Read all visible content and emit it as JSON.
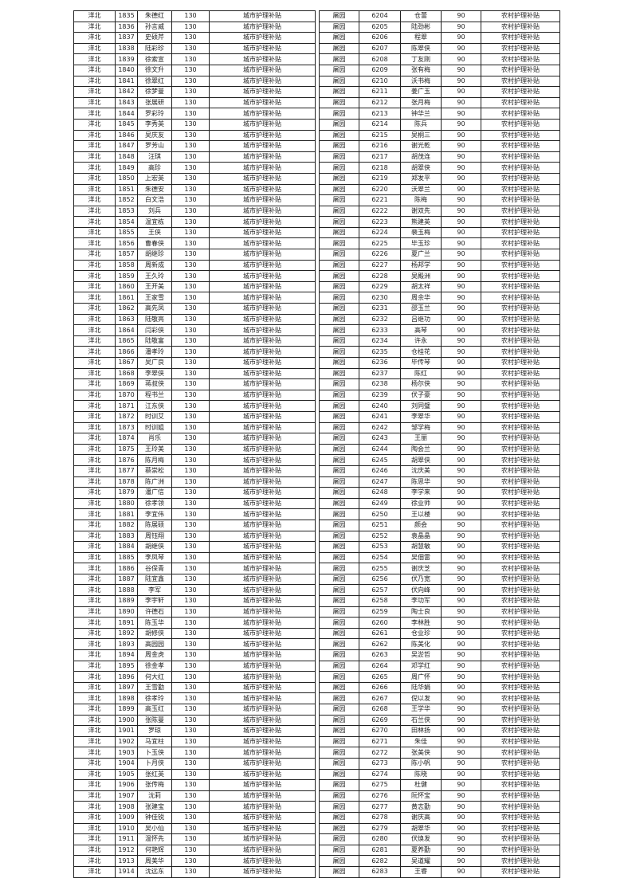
{
  "left_table": {
    "rows": [
      [
        "洋北",
        "1835",
        "朱德红",
        "130",
        "城市护理补贴"
      ],
      [
        "洋北",
        "1836",
        "孙言威",
        "130",
        "城市护理补贴"
      ],
      [
        "洋北",
        "1837",
        "史硕芹",
        "130",
        "城市护理补贴"
      ],
      [
        "洋北",
        "1838",
        "陆彩珍",
        "130",
        "城市护理补贴"
      ],
      [
        "洋北",
        "1839",
        "徐索宣",
        "130",
        "城市护理补贴"
      ],
      [
        "洋北",
        "1840",
        "徐文升",
        "130",
        "城市护理补贴"
      ],
      [
        "洋北",
        "1841",
        "徐翠红",
        "130",
        "城市护理补贴"
      ],
      [
        "洋北",
        "1842",
        "徐梦曼",
        "130",
        "城市护理补贴"
      ],
      [
        "洋北",
        "1843",
        "张展研",
        "130",
        "城市护理补贴"
      ],
      [
        "洋北",
        "1844",
        "罗彩玲",
        "130",
        "城市护理补贴"
      ],
      [
        "洋北",
        "1845",
        "李秀英",
        "130",
        "城市护理补贴"
      ],
      [
        "洋北",
        "1846",
        "吴庆友",
        "130",
        "城市护理补贴"
      ],
      [
        "洋北",
        "1847",
        "罗芳山",
        "130",
        "城市护理补贴"
      ],
      [
        "洋北",
        "1848",
        "汪琪",
        "130",
        "城市护理补贴"
      ],
      [
        "洋北",
        "1849",
        "高珍",
        "130",
        "城市护理补贴"
      ],
      [
        "洋北",
        "1850",
        "上宏英",
        "130",
        "城市护理补贴"
      ],
      [
        "洋北",
        "1851",
        "朱德安",
        "130",
        "城市护理补贴"
      ],
      [
        "洋北",
        "1852",
        "白文浩",
        "130",
        "城市护理补贴"
      ],
      [
        "洋北",
        "1853",
        "刘兵",
        "130",
        "城市护理补贴"
      ],
      [
        "洋北",
        "1854",
        "温宜栋",
        "130",
        "城市护理补贴"
      ],
      [
        "洋北",
        "1855",
        "王侠",
        "130",
        "城市护理补贴"
      ],
      [
        "洋北",
        "1856",
        "曹春侠",
        "130",
        "城市护理补贴"
      ],
      [
        "洋北",
        "1857",
        "胡继珍",
        "130",
        "城市护理补贴"
      ],
      [
        "洋北",
        "1858",
        "周新成",
        "130",
        "城市护理补贴"
      ],
      [
        "洋北",
        "1859",
        "王久玲",
        "130",
        "城市护理补贴"
      ],
      [
        "洋北",
        "1860",
        "王开美",
        "130",
        "城市护理补贴"
      ],
      [
        "洋北",
        "1861",
        "王家雪",
        "130",
        "城市护理补贴"
      ],
      [
        "洋北",
        "1862",
        "高先凤",
        "130",
        "城市护理补贴"
      ],
      [
        "洋北",
        "1863",
        "陆敬亮",
        "130",
        "城市护理补贴"
      ],
      [
        "洋北",
        "1864",
        "闫彩侠",
        "130",
        "城市护理补贴"
      ],
      [
        "洋北",
        "1865",
        "陆敬富",
        "130",
        "城市护理补贴"
      ],
      [
        "洋北",
        "1866",
        "潘孝玲",
        "130",
        "城市护理补贴"
      ],
      [
        "洋北",
        "1867",
        "吴广良",
        "130",
        "城市护理补贴"
      ],
      [
        "洋北",
        "1868",
        "李翠侠",
        "130",
        "城市护理补贴"
      ],
      [
        "洋北",
        "1869",
        "蒋叔侠",
        "130",
        "城市护理补贴"
      ],
      [
        "洋北",
        "1870",
        "程书兰",
        "130",
        "城市护理补贴"
      ],
      [
        "洋北",
        "1871",
        "江东侠",
        "130",
        "城市护理补贴"
      ],
      [
        "洋北",
        "1872",
        "时训艾",
        "130",
        "城市护理补贴"
      ],
      [
        "洋北",
        "1873",
        "时训姐",
        "130",
        "城市护理补贴"
      ],
      [
        "洋北",
        "1874",
        "肖乐",
        "130",
        "城市护理补贴"
      ],
      [
        "洋北",
        "1875",
        "王玲美",
        "130",
        "城市护理补贴"
      ],
      [
        "洋北",
        "1876",
        "陈月梅",
        "130",
        "城市护理补贴"
      ],
      [
        "洋北",
        "1877",
        "蔡崇松",
        "130",
        "城市护理补贴"
      ],
      [
        "洋北",
        "1878",
        "陈广洲",
        "130",
        "城市护理补贴"
      ],
      [
        "洋北",
        "1879",
        "潘广信",
        "130",
        "城市护理补贴"
      ],
      [
        "洋北",
        "1880",
        "徐孝领",
        "130",
        "城市护理补贴"
      ],
      [
        "洋北",
        "1881",
        "李宜伟",
        "130",
        "城市护理补贴"
      ],
      [
        "洋北",
        "1882",
        "陈展硕",
        "130",
        "城市护理补贴"
      ],
      [
        "洋北",
        "1883",
        "周钰翔",
        "130",
        "城市护理补贴"
      ],
      [
        "洋北",
        "1884",
        "胡继侠",
        "130",
        "城市护理补贴"
      ],
      [
        "洋北",
        "1885",
        "李凤琴",
        "130",
        "城市护理补贴"
      ],
      [
        "洋北",
        "1886",
        "谷保青",
        "130",
        "城市护理补贴"
      ],
      [
        "洋北",
        "1887",
        "陆宜鑫",
        "130",
        "城市护理补贴"
      ],
      [
        "洋北",
        "1888",
        "李军",
        "130",
        "城市护理补贴"
      ],
      [
        "洋北",
        "1889",
        "李宇轩",
        "130",
        "城市护理补贴"
      ],
      [
        "洋北",
        "1890",
        "许德石",
        "130",
        "城市护理补贴"
      ],
      [
        "洋北",
        "1891",
        "陈玉华",
        "130",
        "城市护理补贴"
      ],
      [
        "洋北",
        "1892",
        "胡修侠",
        "130",
        "城市护理补贴"
      ],
      [
        "洋北",
        "1893",
        "高园园",
        "130",
        "城市护理补贴"
      ],
      [
        "洋北",
        "1894",
        "周金虎",
        "130",
        "城市护理补贴"
      ],
      [
        "洋北",
        "1895",
        "徐金孝",
        "130",
        "城市护理补贴"
      ],
      [
        "洋北",
        "1896",
        "何大红",
        "130",
        "城市护理补贴"
      ],
      [
        "洋北",
        "1897",
        "王雪勤",
        "130",
        "城市护理补贴"
      ],
      [
        "洋北",
        "1898",
        "徐孝玲",
        "130",
        "城市护理补贴"
      ],
      [
        "洋北",
        "1899",
        "高玉红",
        "130",
        "城市护理补贴"
      ],
      [
        "洋北",
        "1900",
        "张陈曼",
        "130",
        "城市护理补贴"
      ],
      [
        "洋北",
        "1901",
        "罗琼",
        "130",
        "城市护理补贴"
      ],
      [
        "洋北",
        "1902",
        "马宜柱",
        "130",
        "城市护理补贴"
      ],
      [
        "洋北",
        "1903",
        "卜玉侠",
        "130",
        "城市护理补贴"
      ],
      [
        "洋北",
        "1904",
        "卜月侠",
        "130",
        "城市护理补贴"
      ],
      [
        "洋北",
        "1905",
        "张红英",
        "130",
        "城市护理补贴"
      ],
      [
        "洋北",
        "1906",
        "张传梅",
        "130",
        "城市护理补贴"
      ],
      [
        "洋北",
        "1907",
        "沈莉",
        "130",
        "城市护理补贴"
      ],
      [
        "洋北",
        "1908",
        "张建宝",
        "130",
        "城市护理补贴"
      ],
      [
        "洋北",
        "1909",
        "钟佳锐",
        "130",
        "城市护理补贴"
      ],
      [
        "洋北",
        "1910",
        "吴小仙",
        "130",
        "城市护理补贴"
      ],
      [
        "洋北",
        "1911",
        "温怀先",
        "130",
        "城市护理补贴"
      ],
      [
        "洋北",
        "1912",
        "何艳辉",
        "130",
        "城市护理补贴"
      ],
      [
        "洋北",
        "1913",
        "周美华",
        "130",
        "城市护理补贴"
      ],
      [
        "洋北",
        "1914",
        "沈远东",
        "130",
        "城市护理补贴"
      ]
    ]
  },
  "right_table": {
    "rows": [
      [
        "屠园",
        "6204",
        "仓蕾",
        "90",
        "农村护理补贴"
      ],
      [
        "屠园",
        "6205",
        "陆劲彬",
        "90",
        "农村护理补贴"
      ],
      [
        "屠园",
        "6206",
        "程翠",
        "90",
        "农村护理补贴"
      ],
      [
        "屠园",
        "6207",
        "陈翠侠",
        "90",
        "农村护理补贴"
      ],
      [
        "屠园",
        "6208",
        "丁友刚",
        "90",
        "农村护理补贴"
      ],
      [
        "屠园",
        "6209",
        "张有梅",
        "90",
        "农村护理补贴"
      ],
      [
        "屠园",
        "6210",
        "沃书梅",
        "90",
        "农村护理补贴"
      ],
      [
        "屠园",
        "6211",
        "姜广玉",
        "90",
        "农村护理补贴"
      ],
      [
        "屠园",
        "6212",
        "张月梅",
        "90",
        "农村护理补贴"
      ],
      [
        "屠园",
        "6213",
        "钟华兰",
        "90",
        "农村护理补贴"
      ],
      [
        "屠园",
        "6214",
        "陈兵",
        "90",
        "农村护理补贴"
      ],
      [
        "屠园",
        "6215",
        "吴桐三",
        "90",
        "农村护理补贴"
      ],
      [
        "屠园",
        "6216",
        "谢光乾",
        "90",
        "农村护理补贴"
      ],
      [
        "屠园",
        "6217",
        "胡茂连",
        "90",
        "农村护理补贴"
      ],
      [
        "屠园",
        "6218",
        "胡翠侠",
        "90",
        "农村护理补贴"
      ],
      [
        "屠园",
        "6219",
        "郑发平",
        "90",
        "农村护理补贴"
      ],
      [
        "屠园",
        "6220",
        "沃翠兰",
        "90",
        "农村护理补贴"
      ],
      [
        "屠园",
        "6221",
        "陈梅",
        "90",
        "农村护理补贴"
      ],
      [
        "屠园",
        "6222",
        "谢双先",
        "90",
        "农村护理补贴"
      ],
      [
        "屠园",
        "6223",
        "熊建英",
        "90",
        "农村护理补贴"
      ],
      [
        "屠园",
        "6224",
        "裴玉梅",
        "90",
        "农村护理补贴"
      ],
      [
        "屠园",
        "6225",
        "毕玉珍",
        "90",
        "农村护理补贴"
      ],
      [
        "屠园",
        "6226",
        "夏广兰",
        "90",
        "农村护理补贴"
      ],
      [
        "屠园",
        "6227",
        "杨邦学",
        "90",
        "农村护理补贴"
      ],
      [
        "屠园",
        "6228",
        "吴殿洲",
        "90",
        "农村护理补贴"
      ],
      [
        "屠园",
        "6229",
        "胡太祥",
        "90",
        "农村护理补贴"
      ],
      [
        "屠园",
        "6230",
        "周余华",
        "90",
        "农村护理补贴"
      ],
      [
        "屠园",
        "6231",
        "邵玉兰",
        "90",
        "农村护理补贴"
      ],
      [
        "屠园",
        "6232",
        "吕继功",
        "90",
        "农村护理补贴"
      ],
      [
        "屠园",
        "6233",
        "高琴",
        "90",
        "农村护理补贴"
      ],
      [
        "屠园",
        "6234",
        "许永",
        "90",
        "农村护理补贴"
      ],
      [
        "屠园",
        "6235",
        "仓桂花",
        "90",
        "农村护理补贴"
      ],
      [
        "屠园",
        "6236",
        "毕传琴",
        "90",
        "农村护理补贴"
      ],
      [
        "屠园",
        "6237",
        "陈红",
        "90",
        "农村护理补贴"
      ],
      [
        "屠园",
        "6238",
        "杨尔侠",
        "90",
        "农村护理补贴"
      ],
      [
        "屠园",
        "6239",
        "伏子豪",
        "90",
        "农村护理补贴"
      ],
      [
        "屠园",
        "6240",
        "刘同璧",
        "90",
        "农村护理补贴"
      ],
      [
        "屠园",
        "6241",
        "李翠华",
        "90",
        "农村护理补贴"
      ],
      [
        "屠园",
        "6242",
        "邹学梅",
        "90",
        "农村护理补贴"
      ],
      [
        "屠园",
        "6243",
        "王丽",
        "90",
        "农村护理补贴"
      ],
      [
        "屠园",
        "6244",
        "陶会兰",
        "90",
        "农村护理补贴"
      ],
      [
        "屠园",
        "6245",
        "胡翠侠",
        "90",
        "农村护理补贴"
      ],
      [
        "屠园",
        "6246",
        "沈庆美",
        "90",
        "农村护理补贴"
      ],
      [
        "屠园",
        "6247",
        "陈思华",
        "90",
        "农村护理补贴"
      ],
      [
        "屠园",
        "6248",
        "李学来",
        "90",
        "农村护理补贴"
      ],
      [
        "屠园",
        "6249",
        "徐业师",
        "90",
        "农村护理补贴"
      ],
      [
        "屠园",
        "6250",
        "王以楼",
        "90",
        "农村护理补贴"
      ],
      [
        "屠园",
        "6251",
        "颜会",
        "90",
        "农村护理补贴"
      ],
      [
        "屠园",
        "6252",
        "袁晶晶",
        "90",
        "农村护理补贴"
      ],
      [
        "屠园",
        "6253",
        "胡慧敏",
        "90",
        "农村护理补贴"
      ],
      [
        "屠园",
        "6254",
        "吴佃雷",
        "90",
        "农村护理补贴"
      ],
      [
        "屠园",
        "6255",
        "谢庆芝",
        "90",
        "农村护理补贴"
      ],
      [
        "屠园",
        "6256",
        "伏乃宽",
        "90",
        "农村护理补贴"
      ],
      [
        "屠园",
        "6257",
        "伏向峰",
        "90",
        "农村护理补贴"
      ],
      [
        "屠园",
        "6258",
        "李功军",
        "90",
        "农村护理补贴"
      ],
      [
        "屠园",
        "6259",
        "陶士良",
        "90",
        "农村护理补贴"
      ],
      [
        "屠园",
        "6260",
        "李林胜",
        "90",
        "农村护理补贴"
      ],
      [
        "屠园",
        "6261",
        "仓业珍",
        "90",
        "农村护理补贴"
      ],
      [
        "屠园",
        "6262",
        "陈美化",
        "90",
        "农村护理补贴"
      ],
      [
        "屠园",
        "6263",
        "吴淤哲",
        "90",
        "农村护理补贴"
      ],
      [
        "屠园",
        "6264",
        "邓学红",
        "90",
        "农村护理补贴"
      ],
      [
        "屠园",
        "6265",
        "周广怀",
        "90",
        "农村护理补贴"
      ],
      [
        "屠园",
        "6266",
        "陆华娟",
        "90",
        "农村护理补贴"
      ],
      [
        "屠园",
        "6267",
        "倪以发",
        "90",
        "农村护理补贴"
      ],
      [
        "屠园",
        "6268",
        "王学华",
        "90",
        "农村护理补贴"
      ],
      [
        "屠园",
        "6269",
        "石兰侠",
        "90",
        "农村护理补贴"
      ],
      [
        "屠园",
        "6270",
        "田林扬",
        "90",
        "农村护理补贴"
      ],
      [
        "屠园",
        "6271",
        "朱佳",
        "90",
        "农村护理补贴"
      ],
      [
        "屠园",
        "6272",
        "张美侠",
        "90",
        "农村护理补贴"
      ],
      [
        "屠园",
        "6273",
        "陈小帆",
        "90",
        "农村护理补贴"
      ],
      [
        "屠园",
        "6274",
        "陈晓",
        "90",
        "农村护理补贴"
      ],
      [
        "屠园",
        "6275",
        "杜健",
        "90",
        "农村护理补贴"
      ],
      [
        "屠园",
        "6276",
        "阮怀宝",
        "90",
        "农村护理补贴"
      ],
      [
        "屠园",
        "6277",
        "黄志勤",
        "90",
        "农村护理补贴"
      ],
      [
        "屠园",
        "6278",
        "谢庆高",
        "90",
        "农村护理补贴"
      ],
      [
        "屠园",
        "6279",
        "胡翠华",
        "90",
        "农村护理补贴"
      ],
      [
        "屠园",
        "6280",
        "伏焕发",
        "90",
        "农村护理补贴"
      ],
      [
        "屠园",
        "6281",
        "夏养勤",
        "90",
        "农村护理补贴"
      ],
      [
        "屠园",
        "6282",
        "吴道耀",
        "90",
        "农村护理补贴"
      ],
      [
        "屠园",
        "6283",
        "王睿",
        "90",
        "农村护理补贴"
      ]
    ]
  }
}
